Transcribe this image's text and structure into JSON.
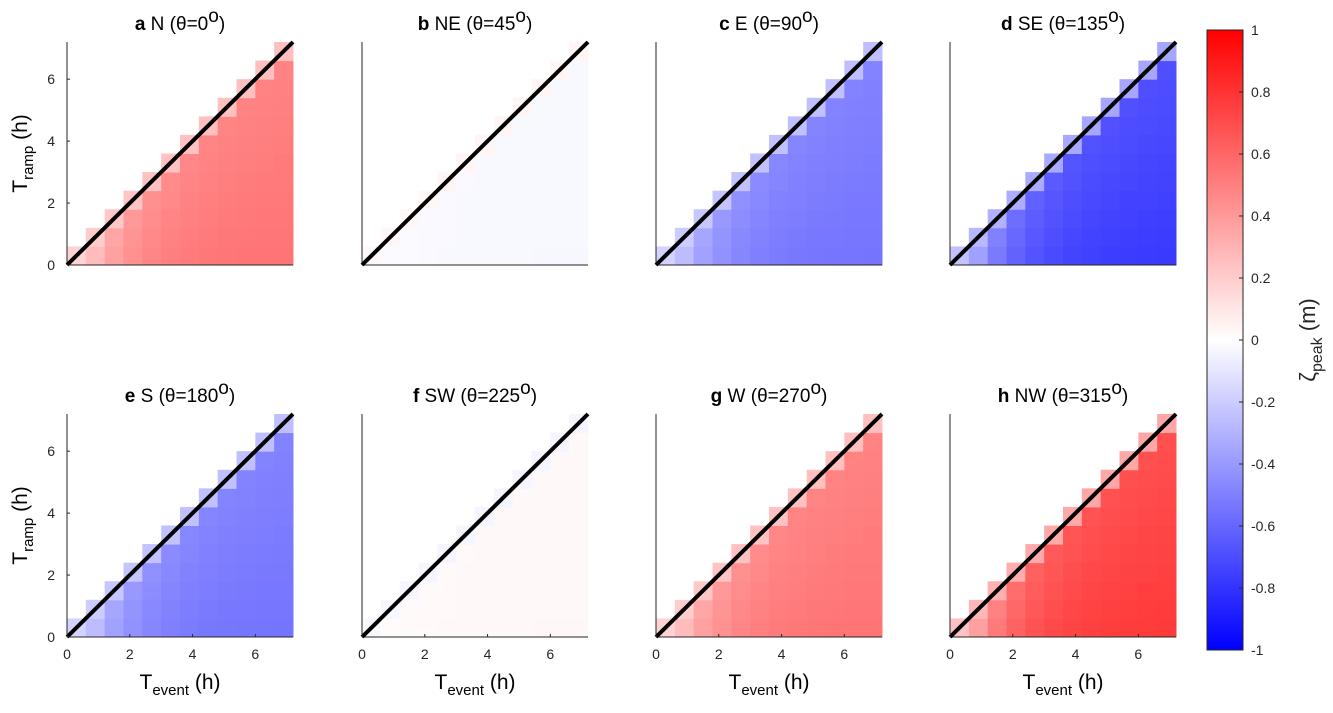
{
  "chart_data": {
    "type": "heatmap",
    "colorbar": {
      "label": "ζ",
      "label_sub": "peak",
      "label_unit": " (m)",
      "min": -1,
      "max": 1,
      "ticks": [
        "-1",
        "-0.8",
        "-0.6",
        "-0.4",
        "-0.2",
        "0",
        "0.2",
        "0.4",
        "0.6",
        "0.8",
        "1"
      ],
      "colormap": [
        "#0000ff",
        "#ffffff",
        "#ff0000"
      ]
    },
    "x_axis": {
      "label": "T",
      "label_sub": "event",
      "label_unit": " (h)",
      "range": [
        0,
        7.2
      ],
      "ticks": [
        "0",
        "2",
        "4",
        "6"
      ]
    },
    "y_axis": {
      "label": "T",
      "label_sub": "ramp",
      "label_unit": " (h)",
      "range": [
        0,
        7.2
      ],
      "ticks": [
        "0",
        "2",
        "4",
        "6"
      ]
    },
    "panels": [
      {
        "letter": "a",
        "dir": "N",
        "angle_text": " (θ=0",
        "angle_sup": "o",
        "angle_close": ")",
        "peak": 0.55,
        "peak_minor": 0.25
      },
      {
        "letter": "b",
        "dir": "NE",
        "angle_text": " (θ=45",
        "angle_sup": "o",
        "angle_close": ")",
        "peak": -0.03,
        "peak_minor": 0.04
      },
      {
        "letter": "c",
        "dir": "E",
        "angle_text": " (θ=90",
        "angle_sup": "o",
        "angle_close": ")",
        "peak": -0.55,
        "peak_minor": -0.25
      },
      {
        "letter": "d",
        "dir": "SE",
        "angle_text": " (θ=135",
        "angle_sup": "o",
        "angle_close": ")",
        "peak": -0.78,
        "peak_minor": -0.35
      },
      {
        "letter": "e",
        "dir": "S",
        "angle_text": " (θ=180",
        "angle_sup": "o",
        "angle_close": ")",
        "peak": -0.55,
        "peak_minor": -0.25
      },
      {
        "letter": "f",
        "dir": "SW",
        "angle_text": " (θ=225",
        "angle_sup": "o",
        "angle_close": ")",
        "peak": 0.03,
        "peak_minor": -0.04
      },
      {
        "letter": "g",
        "dir": "W",
        "angle_text": " (θ=270",
        "angle_sup": "o",
        "angle_close": ")",
        "peak": 0.55,
        "peak_minor": 0.25
      },
      {
        "letter": "h",
        "dir": "NW",
        "angle_text": " (θ=315",
        "angle_sup": "o",
        "angle_close": ")",
        "peak": 0.78,
        "peak_minor": 0.35
      }
    ]
  }
}
